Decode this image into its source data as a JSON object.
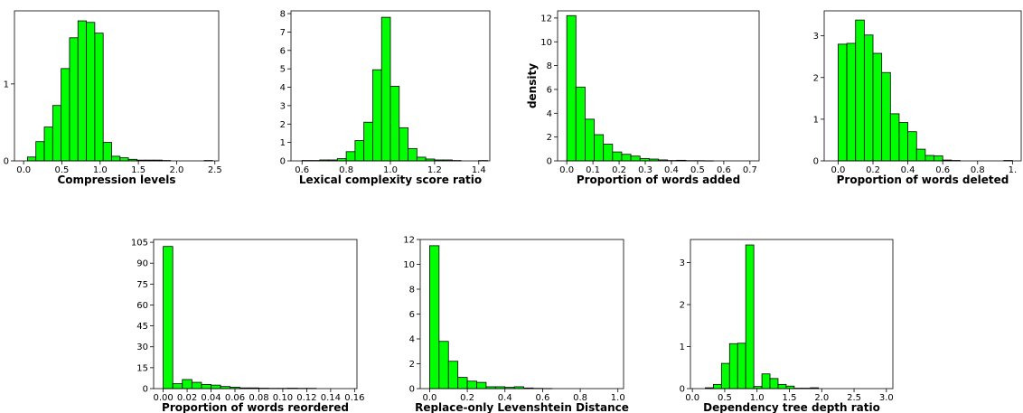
{
  "chart_data": [
    {
      "type": "bar",
      "xlabel": "Compression levels",
      "ylabel": "",
      "xlim": [
        -0.12,
        2.55
      ],
      "ylim": [
        0,
        1.95
      ],
      "xticks": [
        0.0,
        0.5,
        1.0,
        1.5,
        2.0,
        2.5
      ],
      "xtick_labels": [
        "0.0",
        "0.5",
        "1.0",
        "1.5",
        "2.0",
        "2.5"
      ],
      "yticks": [
        0,
        1
      ],
      "ytick_labels": [
        "0",
        "1"
      ],
      "bin_width": 0.11,
      "bins": [
        0.05,
        0.16,
        0.27,
        0.38,
        0.49,
        0.6,
        0.71,
        0.82,
        0.93,
        1.04,
        1.15,
        1.26,
        1.37,
        1.48,
        1.59,
        1.7,
        1.81,
        1.92,
        2.03,
        2.14,
        2.25,
        2.36
      ],
      "values": [
        0.05,
        0.25,
        0.44,
        0.72,
        1.2,
        1.6,
        1.82,
        1.8,
        1.66,
        0.24,
        0.06,
        0.04,
        0.02,
        0.01,
        0.01,
        0.01,
        0.005,
        0.0,
        0.0,
        0.0,
        0.0,
        0.005
      ],
      "color": "#00ff00"
    },
    {
      "type": "bar",
      "xlabel": "Lexical complexity score ratio",
      "ylabel": "",
      "xlim": [
        0.55,
        1.45
      ],
      "ylim": [
        0,
        8.15
      ],
      "xticks": [
        0.6,
        0.8,
        1.0,
        1.2,
        1.4
      ],
      "xtick_labels": [
        "0.6",
        "0.8",
        "1.0",
        "1.2",
        "1.4"
      ],
      "yticks": [
        0,
        1,
        2,
        3,
        4,
        5,
        6,
        7,
        8
      ],
      "ytick_labels": [
        "0",
        "1",
        "2",
        "3",
        "4",
        "5",
        "6",
        "7",
        "8"
      ],
      "bin_width": 0.04,
      "bins": [
        0.6,
        0.64,
        0.68,
        0.72,
        0.76,
        0.8,
        0.84,
        0.88,
        0.92,
        0.96,
        1.0,
        1.04,
        1.08,
        1.12,
        1.16,
        1.2,
        1.24,
        1.28,
        1.32,
        1.36,
        1.4
      ],
      "values": [
        0.02,
        0.02,
        0.05,
        0.05,
        0.12,
        0.5,
        1.1,
        2.1,
        4.95,
        7.8,
        4.05,
        1.8,
        0.67,
        0.2,
        0.1,
        0.05,
        0.05,
        0.02,
        0.0,
        0.0,
        0.02
      ],
      "color": "#00ff00"
    },
    {
      "type": "bar",
      "xlabel": "Proportion of words added",
      "ylabel": "density",
      "xlim": [
        -0.035,
        0.735
      ],
      "ylim": [
        0,
        12.6
      ],
      "xticks": [
        0.0,
        0.1,
        0.2,
        0.3,
        0.4,
        0.5,
        0.6,
        0.7
      ],
      "xtick_labels": [
        "0.0",
        "0.1",
        "0.2",
        "0.3",
        "0.4",
        "0.5",
        "0.6",
        "0.7"
      ],
      "yticks": [
        0,
        2,
        4,
        6,
        8,
        10,
        12
      ],
      "ytick_labels": [
        "0",
        "2",
        "4",
        "6",
        "8",
        "10",
        "12"
      ],
      "bin_width": 0.035,
      "bins": [
        0.0,
        0.035,
        0.07,
        0.105,
        0.14,
        0.175,
        0.21,
        0.245,
        0.28,
        0.315,
        0.35,
        0.385,
        0.42,
        0.455,
        0.49,
        0.525
      ],
      "values": [
        12.2,
        6.2,
        3.5,
        2.2,
        1.4,
        0.75,
        0.55,
        0.4,
        0.2,
        0.15,
        0.08,
        0.03,
        0.05,
        0.02,
        0.02,
        0.01
      ],
      "color": "#00ff00"
    },
    {
      "type": "bar",
      "xlabel": "Proportion of words deleted",
      "ylabel": "",
      "xlim": [
        -0.08,
        1.05
      ],
      "ylim": [
        0,
        3.6
      ],
      "xticks": [
        0.0,
        0.2,
        0.4,
        0.6,
        0.8,
        1.0
      ],
      "xtick_labels": [
        "0.0",
        "0.2",
        "0.4",
        "0.6",
        "0.8",
        "1."
      ],
      "yticks": [
        0,
        1,
        2,
        3
      ],
      "ytick_labels": [
        "0",
        "1",
        "2",
        "3"
      ],
      "bin_width": 0.05,
      "bins": [
        0.0,
        0.05,
        0.1,
        0.15,
        0.2,
        0.25,
        0.3,
        0.35,
        0.4,
        0.45,
        0.5,
        0.55,
        0.6,
        0.65,
        0.7,
        0.75,
        0.8,
        0.85,
        0.9,
        0.95
      ],
      "values": [
        2.8,
        2.82,
        3.38,
        3.02,
        2.58,
        2.12,
        1.13,
        0.92,
        0.7,
        0.28,
        0.13,
        0.12,
        0.02,
        0.01,
        0.0,
        0.0,
        0.0,
        0.0,
        0.0,
        0.01
      ],
      "color": "#00ff00"
    },
    {
      "type": "bar",
      "xlabel": "Proportion of words reordered",
      "ylabel": "",
      "xlim": [
        -0.008,
        0.162
      ],
      "ylim": [
        0,
        107
      ],
      "xticks": [
        0.0,
        0.02,
        0.04,
        0.06,
        0.08,
        0.1,
        0.12,
        0.14,
        0.16
      ],
      "xtick_labels": [
        "0.00",
        "0.02",
        "0.04",
        "0.06",
        "0.08",
        "0.10",
        "0.12",
        "0.14",
        "0.16"
      ],
      "yticks": [
        0,
        15,
        30,
        45,
        60,
        75,
        90,
        105
      ],
      "ytick_labels": [
        "0",
        "15",
        "30",
        "45",
        "60",
        "75",
        "90",
        "105"
      ],
      "bin_width": 0.008,
      "bins": [
        0.0,
        0.008,
        0.016,
        0.024,
        0.032,
        0.04,
        0.048,
        0.056,
        0.064,
        0.072,
        0.08,
        0.088,
        0.096,
        0.104,
        0.112,
        0.12,
        0.128,
        0.136,
        0.144
      ],
      "values": [
        102,
        3.5,
        6.5,
        4.5,
        3.0,
        2.5,
        1.5,
        1.0,
        0.5,
        0.5,
        0.3,
        0.2,
        0.2,
        0.3,
        0.2,
        0.2,
        0.0,
        0.0,
        0.0
      ],
      "color": "#00ff00"
    },
    {
      "type": "bar",
      "xlabel": "Replace-only Levenshtein Distance",
      "ylabel": "",
      "xlim": [
        -0.05,
        1.03
      ],
      "ylim": [
        0,
        12.0
      ],
      "xticks": [
        0.0,
        0.2,
        0.4,
        0.6,
        0.8,
        1.0
      ],
      "xtick_labels": [
        "0.0",
        "0.2",
        "0.4",
        "0.6",
        "0.8",
        "1.0"
      ],
      "yticks": [
        0,
        2,
        4,
        6,
        8,
        10,
        12
      ],
      "ytick_labels": [
        "0",
        "2",
        "4",
        "6",
        "8",
        "10",
        "12"
      ],
      "bin_width": 0.05,
      "bins": [
        0.0,
        0.05,
        0.1,
        0.15,
        0.2,
        0.25,
        0.3,
        0.35,
        0.4,
        0.45,
        0.5,
        0.55,
        0.6
      ],
      "values": [
        11.5,
        3.8,
        2.2,
        0.9,
        0.6,
        0.5,
        0.15,
        0.15,
        0.1,
        0.15,
        0.05,
        0.02,
        0.01
      ],
      "color": "#00ff00"
    },
    {
      "type": "bar",
      "xlabel": "Dependency tree depth ratio",
      "ylabel": "",
      "xlim": [
        -0.03,
        3.1
      ],
      "ylim": [
        0,
        3.55
      ],
      "xticks": [
        0.0,
        0.5,
        1.0,
        1.5,
        2.0,
        2.5,
        3.0
      ],
      "xtick_labels": [
        "0.0",
        "0.5",
        "1.0",
        "1.5",
        "2.0",
        "2.5",
        "3.0"
      ],
      "yticks": [
        0,
        1,
        2,
        3
      ],
      "ytick_labels": [
        "0",
        "1",
        "2",
        "3"
      ],
      "bin_width": 0.125,
      "bins": [
        0.2,
        0.325,
        0.45,
        0.575,
        0.7,
        0.825,
        0.95,
        1.075,
        1.2,
        1.325,
        1.45,
        1.575,
        1.7,
        1.825
      ],
      "values": [
        0.02,
        0.1,
        0.6,
        1.07,
        1.08,
        3.42,
        0.05,
        0.35,
        0.24,
        0.1,
        0.06,
        0.01,
        0.01,
        0.02
      ],
      "color": "#00ff00"
    }
  ]
}
